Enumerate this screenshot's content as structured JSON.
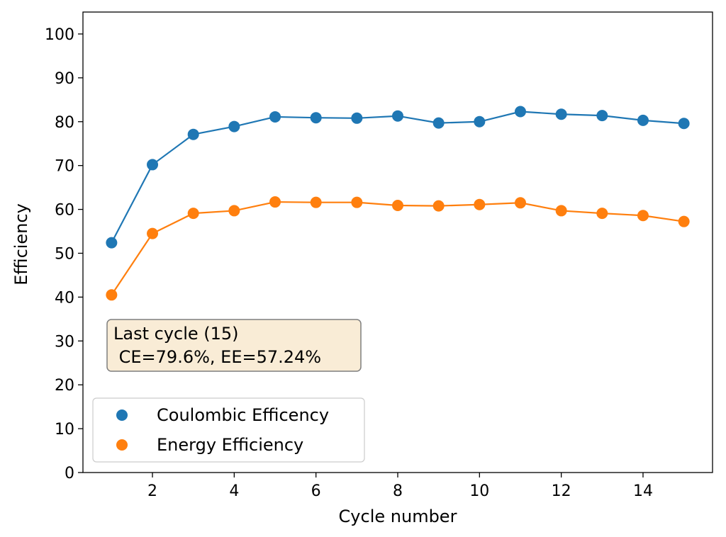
{
  "chart_data": {
    "type": "line",
    "title": "",
    "xlabel": "Cycle number",
    "ylabel": "Efficiency",
    "xlim": [
      0.3,
      15.7
    ],
    "ylim": [
      0,
      105
    ],
    "x_ticks": [
      2,
      4,
      6,
      8,
      10,
      12,
      14
    ],
    "y_ticks": [
      0,
      10,
      20,
      30,
      40,
      50,
      60,
      70,
      80,
      90,
      100
    ],
    "grid": false,
    "legend_position": "bottom-left",
    "x": [
      1,
      2,
      3,
      4,
      5,
      6,
      7,
      8,
      9,
      10,
      11,
      12,
      13,
      14,
      15
    ],
    "series": [
      {
        "name": "Coulombic Efficency",
        "color": "#1f77b4",
        "values": [
          52.4,
          70.2,
          77.1,
          78.9,
          81.1,
          80.9,
          80.8,
          81.3,
          79.7,
          80.0,
          82.3,
          81.7,
          81.4,
          80.3,
          79.6
        ]
      },
      {
        "name": "Energy Efficiency",
        "color": "#ff7f0e",
        "values": [
          40.5,
          54.5,
          59.1,
          59.7,
          61.7,
          61.6,
          61.6,
          60.9,
          60.8,
          61.1,
          61.5,
          59.7,
          59.1,
          58.6,
          57.24
        ]
      }
    ],
    "annotation": {
      "line1": "Last cycle (15)",
      "line2": " CE=79.6%, EE=57.24%",
      "background": "#f9ecd6",
      "border": "#7f7f7f"
    }
  }
}
